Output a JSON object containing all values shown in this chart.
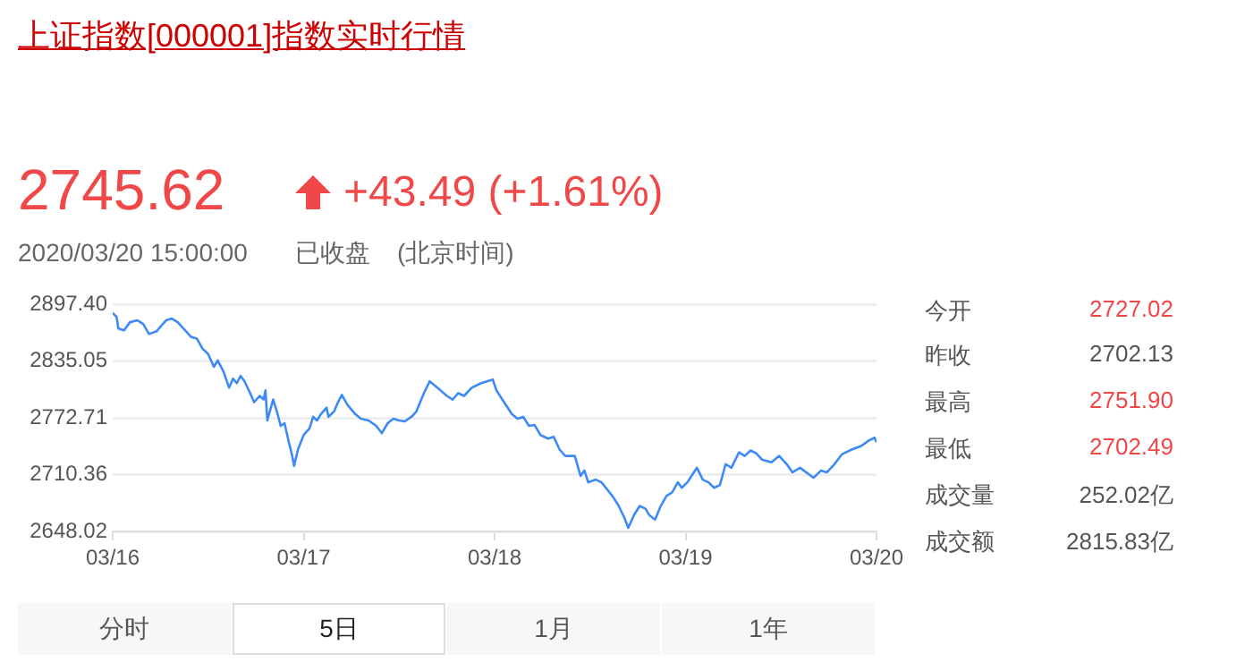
{
  "chart_data": {
    "type": "line",
    "title": "上证指数[000001]指数实时行情",
    "color": "#3d8af7",
    "grid": "y",
    "legend": false,
    "marker": "none",
    "line_style": "solid",
    "x": [
      "2020-03-16T00:00",
      "2020-03-16T00:29",
      "2020-03-16T00:43",
      "2020-03-16T01:26",
      "2020-03-16T02:10",
      "2020-03-16T03:07",
      "2020-03-16T03:50",
      "2020-03-16T04:34",
      "2020-03-16T05:31",
      "2020-03-16T06:00",
      "2020-03-16T06:43",
      "2020-03-16T07:26",
      "2020-03-16T08:10",
      "2020-03-16T09:07",
      "2020-03-16T09:50",
      "2020-03-16T10:34",
      "2020-03-16T11:17",
      "2020-03-16T12:00",
      "2020-03-16T12:43",
      "2020-03-16T13:12",
      "2020-03-16T13:55",
      "2020-03-16T14:38",
      "2020-03-16T15:07",
      "2020-03-16T15:36",
      "2020-03-16T16:05",
      "2020-03-16T16:34",
      "2020-03-16T17:17",
      "2020-03-16T17:46",
      "2020-03-16T18:29",
      "2020-03-16T18:58",
      "2020-03-16T19:12",
      "2020-03-16T19:26",
      "2020-03-16T20:10",
      "2020-03-16T20:38",
      "2020-03-16T21:07",
      "2020-03-16T21:36",
      "2020-03-16T22:05",
      "2020-03-16T22:34",
      "2020-03-16T22:48",
      "2020-03-16T23:17",
      "2020-03-17T00:00",
      "2020-03-17T00:43",
      "2020-03-17T01:12",
      "2020-03-17T01:41",
      "2020-03-17T02:10",
      "2020-03-17T02:53",
      "2020-03-17T03:07",
      "2020-03-17T03:50",
      "2020-03-17T04:19",
      "2020-03-17T04:48",
      "2020-03-17T05:31",
      "2020-03-17T06:29",
      "2020-03-17T07:12",
      "2020-03-17T08:10",
      "2020-03-17T09:07",
      "2020-03-17T09:50",
      "2020-03-17T10:34",
      "2020-03-17T11:17",
      "2020-03-17T12:00",
      "2020-03-17T12:43",
      "2020-03-17T13:41",
      "2020-03-17T14:10",
      "2020-03-17T15:07",
      "2020-03-17T15:50",
      "2020-03-17T16:48",
      "2020-03-17T18:00",
      "2020-03-17T18:43",
      "2020-03-17T19:26",
      "2020-03-17T20:10",
      "2020-03-17T21:07",
      "2020-03-17T22:19",
      "2020-03-17T23:46",
      "2020-03-18T00:14",
      "2020-03-18T00:58",
      "2020-03-18T02:10",
      "2020-03-18T02:53",
      "2020-03-18T03:36",
      "2020-03-18T04:19",
      "2020-03-18T05:02",
      "2020-03-18T05:46",
      "2020-03-18T06:43",
      "2020-03-18T07:26",
      "2020-03-18T08:10",
      "2020-03-18T08:53",
      "2020-03-18T10:05",
      "2020-03-18T10:48",
      "2020-03-18T11:17",
      "2020-03-18T11:46",
      "2020-03-18T12:43",
      "2020-03-18T13:26",
      "2020-03-18T14:10",
      "2020-03-18T14:53",
      "2020-03-18T15:36",
      "2020-03-18T16:19",
      "2020-03-18T16:48",
      "2020-03-18T17:31",
      "2020-03-18T18:14",
      "2020-03-18T18:58",
      "2020-03-18T19:26",
      "2020-03-18T20:10",
      "2020-03-18T20:53",
      "2020-03-18T21:36",
      "2020-03-18T22:19",
      "2020-03-18T23:02",
      "2020-03-18T23:31",
      "2020-03-19T00:14",
      "2020-03-19T00:58",
      "2020-03-19T01:26",
      "2020-03-19T02:10",
      "2020-03-19T02:53",
      "2020-03-19T03:36",
      "2020-03-19T04:19",
      "2020-03-19T05:02",
      "2020-03-19T05:46",
      "2020-03-19T06:43",
      "2020-03-19T07:26",
      "2020-03-19T08:10",
      "2020-03-19T08:53",
      "2020-03-19T09:36",
      "2020-03-19T10:48",
      "2020-03-19T11:46",
      "2020-03-19T12:43",
      "2020-03-19T13:26",
      "2020-03-19T14:24",
      "2020-03-19T16:05",
      "2020-03-19T17:02",
      "2020-03-19T17:46",
      "2020-03-19T18:43",
      "2020-03-19T19:41",
      "2020-03-19T20:53",
      "2020-03-19T22:05",
      "2020-03-19T23:02",
      "2020-03-19T23:46",
      "2020-03-20T00:00"
    ],
    "values": [
      2888,
      2884,
      2871,
      2869,
      2878,
      2880,
      2876,
      2865,
      2868,
      2873,
      2880,
      2882,
      2878,
      2869,
      2862,
      2860,
      2849,
      2843,
      2829,
      2836,
      2824,
      2806,
      2816,
      2811,
      2819,
      2813,
      2800,
      2790,
      2797,
      2793,
      2803,
      2770,
      2793,
      2780,
      2764,
      2767,
      2748,
      2731,
      2720,
      2738,
      2754,
      2761,
      2774,
      2770,
      2777,
      2784,
      2774,
      2780,
      2790,
      2798,
      2787,
      2777,
      2772,
      2770,
      2764,
      2756,
      2767,
      2772,
      2770,
      2769,
      2775,
      2780,
      2800,
      2813,
      2806,
      2797,
      2793,
      2800,
      2797,
      2806,
      2811,
      2815,
      2803,
      2793,
      2777,
      2772,
      2774,
      2764,
      2765,
      2754,
      2750,
      2752,
      2738,
      2731,
      2731,
      2709,
      2715,
      2702,
      2705,
      2702,
      2694,
      2686,
      2676,
      2663,
      2652,
      2666,
      2676,
      2673,
      2666,
      2661,
      2676,
      2687,
      2691,
      2702,
      2696,
      2702,
      2712,
      2718,
      2705,
      2702,
      2696,
      2699,
      2722,
      2718,
      2735,
      2731,
      2737,
      2734,
      2727,
      2724,
      2731,
      2722,
      2713,
      2718,
      2707,
      2715,
      2713,
      2722,
      2733,
      2738,
      2742,
      2748,
      2751,
      2746
    ],
    "xlim": [
      "2020-03-16",
      "2020-03-20"
    ],
    "xticks": [
      {
        "value": "2020-03-16",
        "label": "03/16"
      },
      {
        "value": "2020-03-17",
        "label": "03/17"
      },
      {
        "value": "2020-03-18",
        "label": "03/18"
      },
      {
        "value": "2020-03-19",
        "label": "03/19"
      },
      {
        "value": "2020-03-20",
        "label": "03/20"
      }
    ],
    "ylim": [
      2648.02,
      2897.4
    ],
    "yticks": [
      {
        "value": 2648.02,
        "label": "2648.02"
      },
      {
        "value": 2710.36,
        "label": "2710.36"
      },
      {
        "value": 2772.71,
        "label": "2772.71"
      },
      {
        "value": 2835.05,
        "label": "2835.05"
      },
      {
        "value": 2897.4,
        "label": "2897.40"
      }
    ],
    "annotations": [
      "2745.62",
      "+43.49 (+1.61%)",
      "2020/03/20 15:00:00",
      "已收盘",
      "(北京时间)",
      "今开",
      "2727.02",
      "昨收",
      "2702.13",
      "最高",
      "2751.90",
      "最低",
      "2702.49",
      "成交量",
      "252.02亿",
      "成交额",
      "2815.83亿",
      "分时",
      "5日",
      "1月",
      "1年"
    ]
  }
}
